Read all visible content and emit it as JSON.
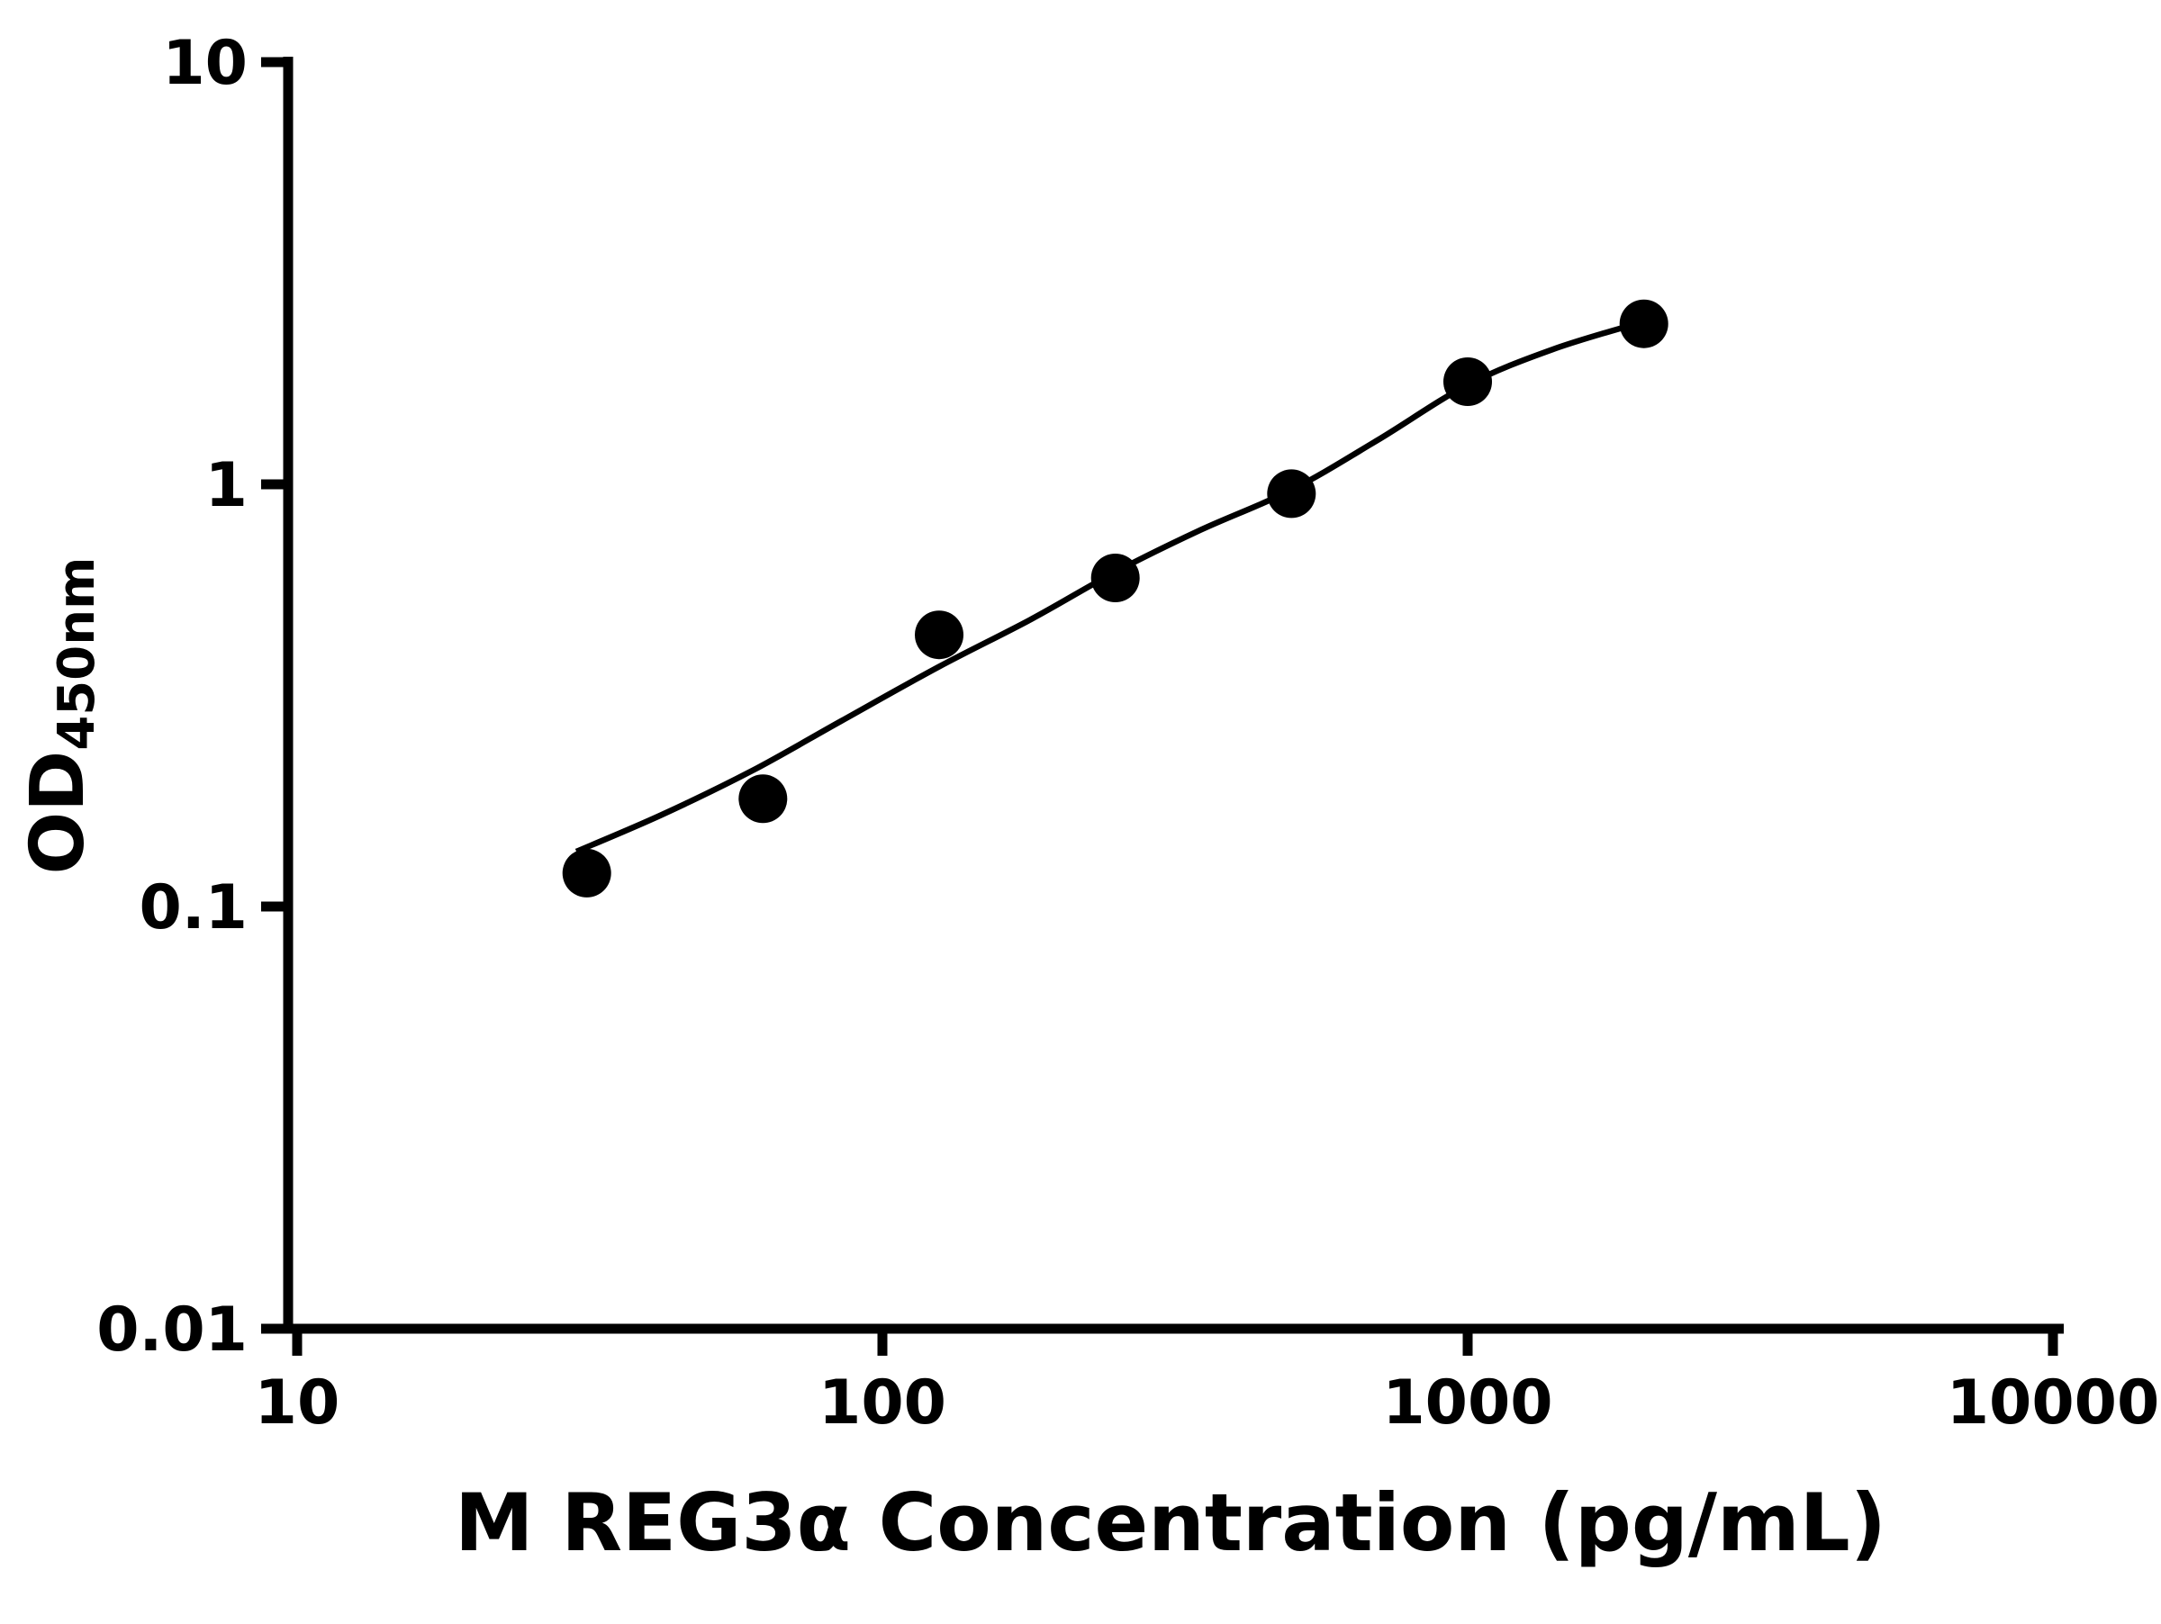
{
  "chart_data": {
    "type": "scatter",
    "title": "",
    "xlabel": "M REG3α Concentration (pg/mL)",
    "ylabel": "OD",
    "ylabel_subscript": "450nm",
    "x_scale": "log10",
    "y_scale": "log10",
    "xlim": [
      10,
      10000
    ],
    "ylim": [
      0.01,
      10
    ],
    "x_ticks": [
      10,
      100,
      1000,
      10000
    ],
    "x_tick_labels": [
      "10",
      "100",
      "1000",
      "10000"
    ],
    "y_ticks": [
      0.01,
      0.1,
      1,
      10
    ],
    "y_tick_labels": [
      "0.01",
      "0.1",
      "1",
      "10"
    ],
    "grid": false,
    "legend": false,
    "marker_color": "#000000",
    "line_color": "#000000",
    "series": [
      {
        "name": "standard-curve-points",
        "x": [
          31.25,
          62.5,
          125,
          250,
          500,
          1000,
          2000
        ],
        "y": [
          0.12,
          0.18,
          0.44,
          0.6,
          0.95,
          1.75,
          2.4
        ]
      }
    ],
    "fit_curve": {
      "name": "four-parameter-fit",
      "x": [
        30,
        42,
        60,
        85,
        125,
        180,
        250,
        350,
        500,
        700,
        1000,
        1400,
        2000
      ],
      "y": [
        0.135,
        0.165,
        0.21,
        0.275,
        0.37,
        0.48,
        0.62,
        0.78,
        0.97,
        1.27,
        1.72,
        2.09,
        2.43
      ]
    }
  }
}
